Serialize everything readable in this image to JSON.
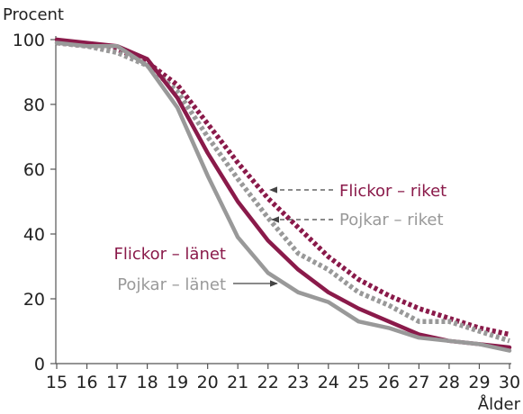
{
  "chart_data": {
    "type": "line",
    "title": "",
    "ylabel": "Procent",
    "xlabel": "Ålder",
    "x": [
      15,
      16,
      17,
      18,
      19,
      20,
      21,
      22,
      23,
      24,
      25,
      26,
      27,
      28,
      29,
      30
    ],
    "xlim": [
      15,
      30
    ],
    "ylim": [
      0,
      100
    ],
    "yticks": [
      0,
      20,
      40,
      60,
      80,
      100
    ],
    "grid": false,
    "colors": {
      "flickor": "#8a1a4a",
      "pojkar": "#999999",
      "axis": "#555555",
      "leader": "#444444"
    },
    "series": [
      {
        "key": "flickor_riket",
        "name": "Flickor – riket",
        "style": "dotted",
        "color": "#8a1a4a",
        "values": [
          99,
          98,
          97,
          93,
          86,
          74,
          62,
          51,
          42,
          33,
          26,
          21,
          17,
          14,
          11,
          9
        ]
      },
      {
        "key": "pojkar_riket",
        "name": "Pojkar – riket",
        "style": "dotted",
        "color": "#999999",
        "values": [
          99,
          98,
          96,
          92,
          84,
          70,
          57,
          45,
          34,
          29,
          22,
          18,
          13,
          13,
          10,
          7
        ]
      },
      {
        "key": "flickor_lanet",
        "name": "Flickor – länet",
        "style": "solid",
        "color": "#8a1a4a",
        "values": [
          100,
          99,
          98,
          94,
          82,
          65,
          50,
          38,
          29,
          22,
          17,
          13,
          9,
          7,
          6,
          5
        ]
      },
      {
        "key": "pojkar_lanet",
        "name": "Pojkar – länet",
        "style": "solid",
        "color": "#999999",
        "values": [
          99,
          98,
          98,
          92,
          79,
          58,
          39,
          28,
          22,
          19,
          13,
          11,
          8,
          7,
          6,
          4
        ]
      }
    ]
  }
}
